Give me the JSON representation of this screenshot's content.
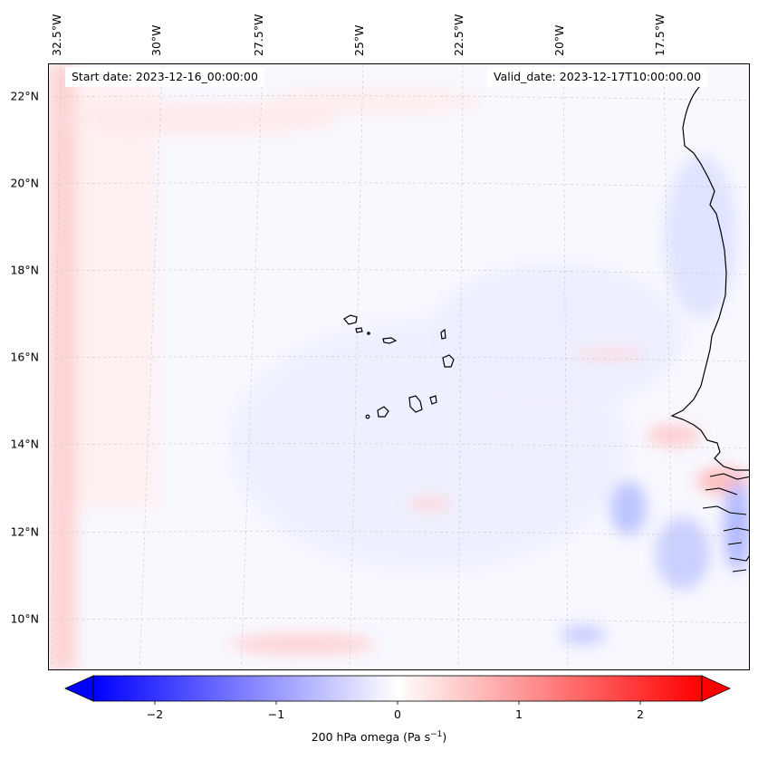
{
  "start_date_text": "Start date: 2023-12-16_00:00:00",
  "valid_date_text": "Valid_date: 2023-12-17T10:00:00.00",
  "lon_labels": [
    "32.5°W",
    "30°W",
    "27.5°W",
    "25°W",
    "22.5°W",
    "20°W",
    "17.5°W"
  ],
  "lat_labels": [
    "22°N",
    "20°N",
    "18°N",
    "16°N",
    "14°N",
    "12°N",
    "10°N"
  ],
  "colorbar": {
    "title": "200 hPa omega (Pa s",
    "title_sup": "−1",
    "title_end": ")",
    "ticks": [
      "−2",
      "−1",
      "0",
      "1",
      "2"
    ],
    "min": -2.5,
    "max": 2.5,
    "extend": "both",
    "cmap": "bwr",
    "low_color": "#0000ff",
    "mid_color": "#ffffff",
    "high_color": "#ff0000"
  },
  "map": {
    "projection": "Lambert conformal",
    "gridlines": "dashed",
    "background_field": "near-zero omega (white/pale blue)",
    "features": [
      "Cape Verde islands",
      "West African coastline (Senegal, Gambia, Guinea-Bissau)"
    ]
  }
}
